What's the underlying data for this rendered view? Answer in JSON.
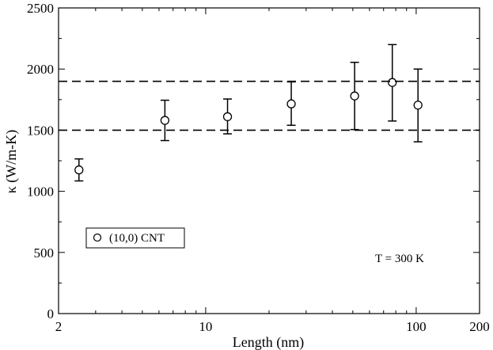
{
  "chart_data": {
    "type": "scatter",
    "xlabel": "Length (nm)",
    "ylabel": "κ (W/m-K)",
    "x_scale": "log",
    "xlim": [
      2,
      200
    ],
    "ylim": [
      0,
      2500
    ],
    "x_ticks": [
      {
        "value": 2,
        "label": "2"
      },
      {
        "value": 10,
        "label": "10"
      },
      {
        "value": 100,
        "label": "100"
      },
      {
        "value": 200,
        "label": "200"
      }
    ],
    "y_ticks": [
      {
        "value": 0,
        "label": "0"
      },
      {
        "value": 500,
        "label": "500"
      },
      {
        "value": 1000,
        "label": "1000"
      },
      {
        "value": 1500,
        "label": "1500"
      },
      {
        "value": 2000,
        "label": "2000"
      },
      {
        "value": 2500,
        "label": "2500"
      }
    ],
    "grid": false,
    "legend": {
      "position": "bottom-left",
      "entries": [
        "(10,0) CNT"
      ]
    },
    "series": [
      {
        "name": "(10,0) CNT",
        "marker": "open-circle",
        "points": [
          {
            "x": 2.5,
            "y": 1175,
            "yerr_low": 1085,
            "yerr_high": 1265
          },
          {
            "x": 6.4,
            "y": 1580,
            "yerr_low": 1415,
            "yerr_high": 1745
          },
          {
            "x": 12.7,
            "y": 1610,
            "yerr_low": 1470,
            "yerr_high": 1755
          },
          {
            "x": 25.5,
            "y": 1715,
            "yerr_low": 1540,
            "yerr_high": 1895
          },
          {
            "x": 51,
            "y": 1780,
            "yerr_low": 1505,
            "yerr_high": 2055
          },
          {
            "x": 77,
            "y": 1890,
            "yerr_low": 1575,
            "yerr_high": 2200
          },
          {
            "x": 102,
            "y": 1705,
            "yerr_low": 1405,
            "yerr_high": 2000
          }
        ]
      }
    ],
    "reference_lines": [
      {
        "axis": "y",
        "value": 1900,
        "style": "dashed"
      },
      {
        "axis": "y",
        "value": 1500,
        "style": "dashed"
      }
    ],
    "annotations": [
      {
        "text": "T = 300 K",
        "position": "bottom-right"
      }
    ]
  }
}
